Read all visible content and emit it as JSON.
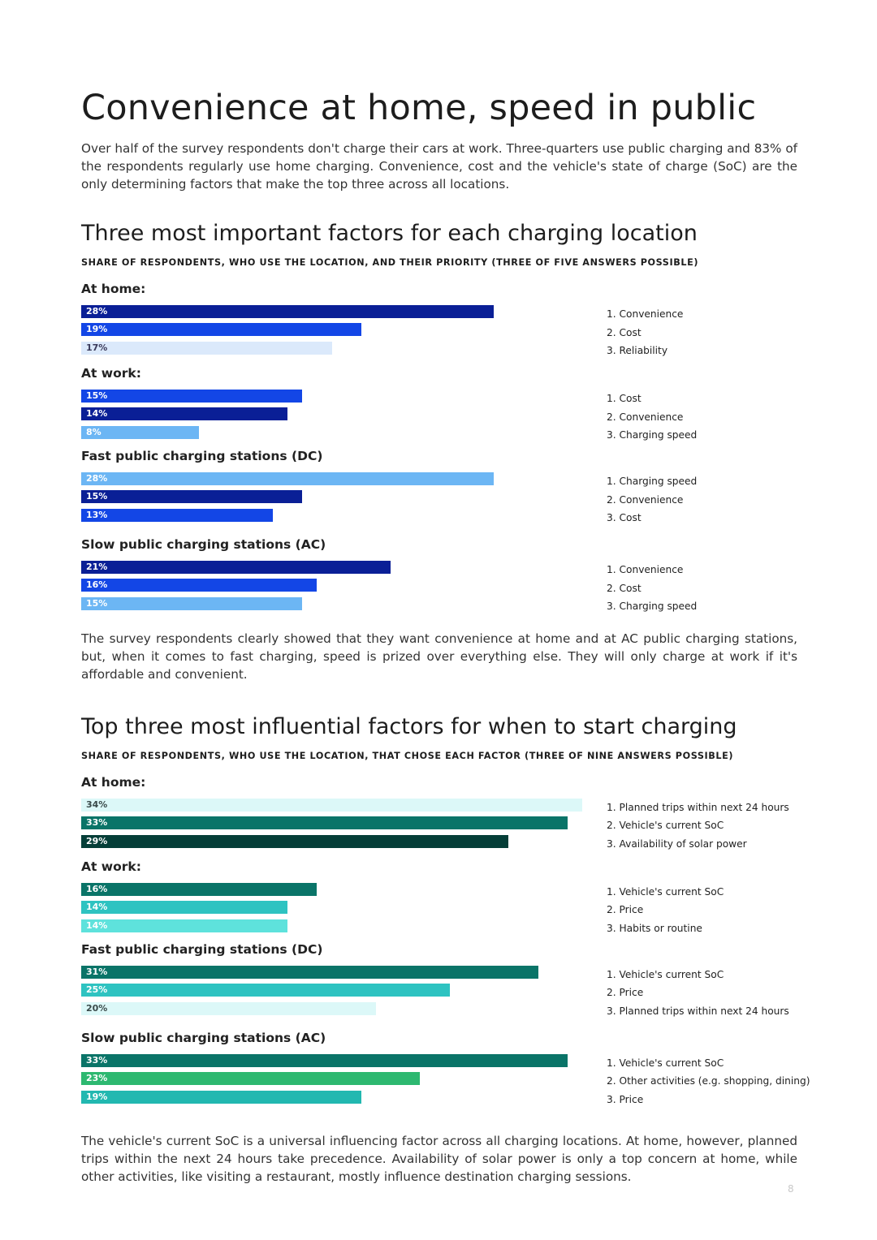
{
  "page": {
    "title": "Convenience at home, speed in public",
    "intro": "Over half of the survey respondents don't charge their cars at work. Three-quarters use public charging and 83% of the respondents regularly use home charging. Convenience, cost and the vehicle's state of charge (SoC) are the only determining factors that make the top three across all locations.",
    "middle_text": "The survey respondents clearly showed that they want convenience at home and at AC public charging stations, but, when it comes to fast charging, speed is prized over everything else. They will only charge at work if it's affordable and convenient.",
    "closing_text": "The vehicle's current SoC is a universal influencing factor across all charging locations. At home, however, planned trips within the next 24 hours take precedence. Availability of solar power is only a top concern at home, while other activities, like visiting a restaurant, mostly influence destination charging sessions.",
    "page_number": "8"
  },
  "chart_data": [
    {
      "type": "bar",
      "orientation": "horizontal",
      "title": "Three most important factors for each charging location",
      "subtitle": "SHARE OF RESPONDENTS, WHO USE THE LOCATION, AND THEIR PRIORITY (THREE OF FIVE ANSWERS POSSIBLE)",
      "unit": "%",
      "groups": [
        {
          "label": "At home:",
          "bars": [
            {
              "value": 28,
              "label": "28%",
              "factor": "1. Convenience",
              "color": "#0a1f96",
              "text_color": "#ffffff"
            },
            {
              "value": 19,
              "label": "19%",
              "factor": "2. Cost",
              "color": "#1346e6",
              "text_color": "#ffffff"
            },
            {
              "value": 17,
              "label": "17%",
              "factor": "3. Reliability",
              "color": "#dbe9fb",
              "text_color": "#3a3a5a"
            }
          ]
        },
        {
          "label": "At work:",
          "bars": [
            {
              "value": 15,
              "label": "15%",
              "factor": "1. Cost",
              "color": "#1346e6",
              "text_color": "#ffffff"
            },
            {
              "value": 14,
              "label": "14%",
              "factor": "2. Convenience",
              "color": "#0a1f96",
              "text_color": "#ffffff"
            },
            {
              "value": 8,
              "label": "8%",
              "factor": "3. Charging speed",
              "color": "#6cb6f4",
              "text_color": "#ffffff"
            }
          ]
        },
        {
          "label": "Fast public charging stations (DC)",
          "bars": [
            {
              "value": 28,
              "label": "28%",
              "factor": "1. Charging speed",
              "color": "#6cb6f4",
              "text_color": "#ffffff"
            },
            {
              "value": 15,
              "label": "15%",
              "factor": "2. Convenience",
              "color": "#0a1f96",
              "text_color": "#ffffff"
            },
            {
              "value": 13,
              "label": "13%",
              "factor": "3. Cost",
              "color": "#1346e6",
              "text_color": "#ffffff"
            }
          ]
        },
        {
          "label": "Slow public charging stations (AC)",
          "bars": [
            {
              "value": 21,
              "label": "21%",
              "factor": "1. Convenience",
              "color": "#0a1f96",
              "text_color": "#ffffff"
            },
            {
              "value": 16,
              "label": "16%",
              "factor": "2. Cost",
              "color": "#1346e6",
              "text_color": "#ffffff"
            },
            {
              "value": 15,
              "label": "15%",
              "factor": "3. Charging speed",
              "color": "#6cb6f4",
              "text_color": "#ffffff"
            }
          ]
        }
      ]
    },
    {
      "type": "bar",
      "orientation": "horizontal",
      "title": "Top three most influential factors for when to start charging",
      "subtitle": "SHARE OF RESPONDENTS, WHO USE THE LOCATION, THAT CHOSE EACH FACTOR (THREE OF NINE ANSWERS POSSIBLE)",
      "unit": "%",
      "groups": [
        {
          "label": "At home:",
          "bars": [
            {
              "value": 34,
              "label": "34%",
              "factor": "1. Planned trips within next 24 hours",
              "color": "#dcf8f8",
              "text_color": "#3a4a4a"
            },
            {
              "value": 33,
              "label": "33%",
              "factor": "2. Vehicle's current SoC",
              "color": "#0a7468",
              "text_color": "#ffffff"
            },
            {
              "value": 29,
              "label": "29%",
              "factor": "3. Availability of solar power",
              "color": "#053e38",
              "text_color": "#ffffff"
            }
          ]
        },
        {
          "label": "At work:",
          "bars": [
            {
              "value": 16,
              "label": "16%",
              "factor": "1. Vehicle's current SoC",
              "color": "#0a7468",
              "text_color": "#ffffff"
            },
            {
              "value": 14,
              "label": "14%",
              "factor": "2. Price",
              "color": "#2ec3c1",
              "text_color": "#ffffff"
            },
            {
              "value": 14,
              "label": "14%",
              "factor": "3. Habits or routine",
              "color": "#5ee2dc",
              "text_color": "#ffffff"
            }
          ]
        },
        {
          "label": "Fast public charging stations (DC)",
          "bars": [
            {
              "value": 31,
              "label": "31%",
              "factor": "1. Vehicle's current SoC",
              "color": "#0a7468",
              "text_color": "#ffffff"
            },
            {
              "value": 25,
              "label": "25%",
              "factor": "2. Price",
              "color": "#2ec3c1",
              "text_color": "#ffffff"
            },
            {
              "value": 20,
              "label": "20%",
              "factor": "3. Planned trips within next 24 hours",
              "color": "#dcf8f8",
              "text_color": "#3a4a4a"
            }
          ]
        },
        {
          "label": "Slow public charging stations (AC)",
          "bars": [
            {
              "value": 33,
              "label": "33%",
              "factor": "1. Vehicle's current SoC",
              "color": "#0a7468",
              "text_color": "#ffffff"
            },
            {
              "value": 23,
              "label": "23%",
              "factor": "2. Other activities (e.g. shopping, dining)",
              "color": "#2db870",
              "text_color": "#ffffff"
            },
            {
              "value": 19,
              "label": "19%",
              "factor": "3. Price",
              "color": "#22b8b0",
              "text_color": "#ffffff"
            }
          ]
        }
      ]
    }
  ]
}
